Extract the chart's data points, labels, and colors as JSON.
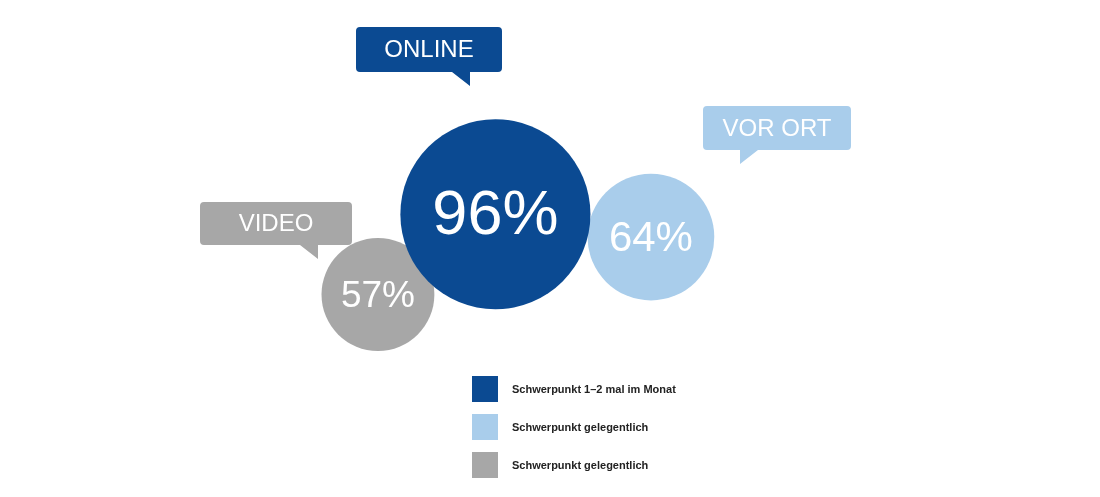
{
  "chart_data": {
    "type": "other",
    "categories": [
      "ONLINE",
      "VOR ORT",
      "VIDEO"
    ],
    "series": [
      {
        "name": "Schwerpunkt 1–2 mal im Monat",
        "color": "#0b4a92",
        "values": [
          96,
          null,
          null
        ],
        "value_labels": [
          "96%",
          null,
          null
        ]
      },
      {
        "name": "Schwerpunkt gelegentlich",
        "color": "#a9cdeb",
        "values": [
          null,
          64,
          null
        ],
        "value_labels": [
          null,
          "64%",
          null
        ]
      },
      {
        "name": "Schwerpunkt gelegentlich",
        "color": "#a7a7a7",
        "values": [
          null,
          null,
          57
        ],
        "value_labels": [
          null,
          null,
          "57%"
        ]
      }
    ],
    "legend": "bottom"
  }
}
